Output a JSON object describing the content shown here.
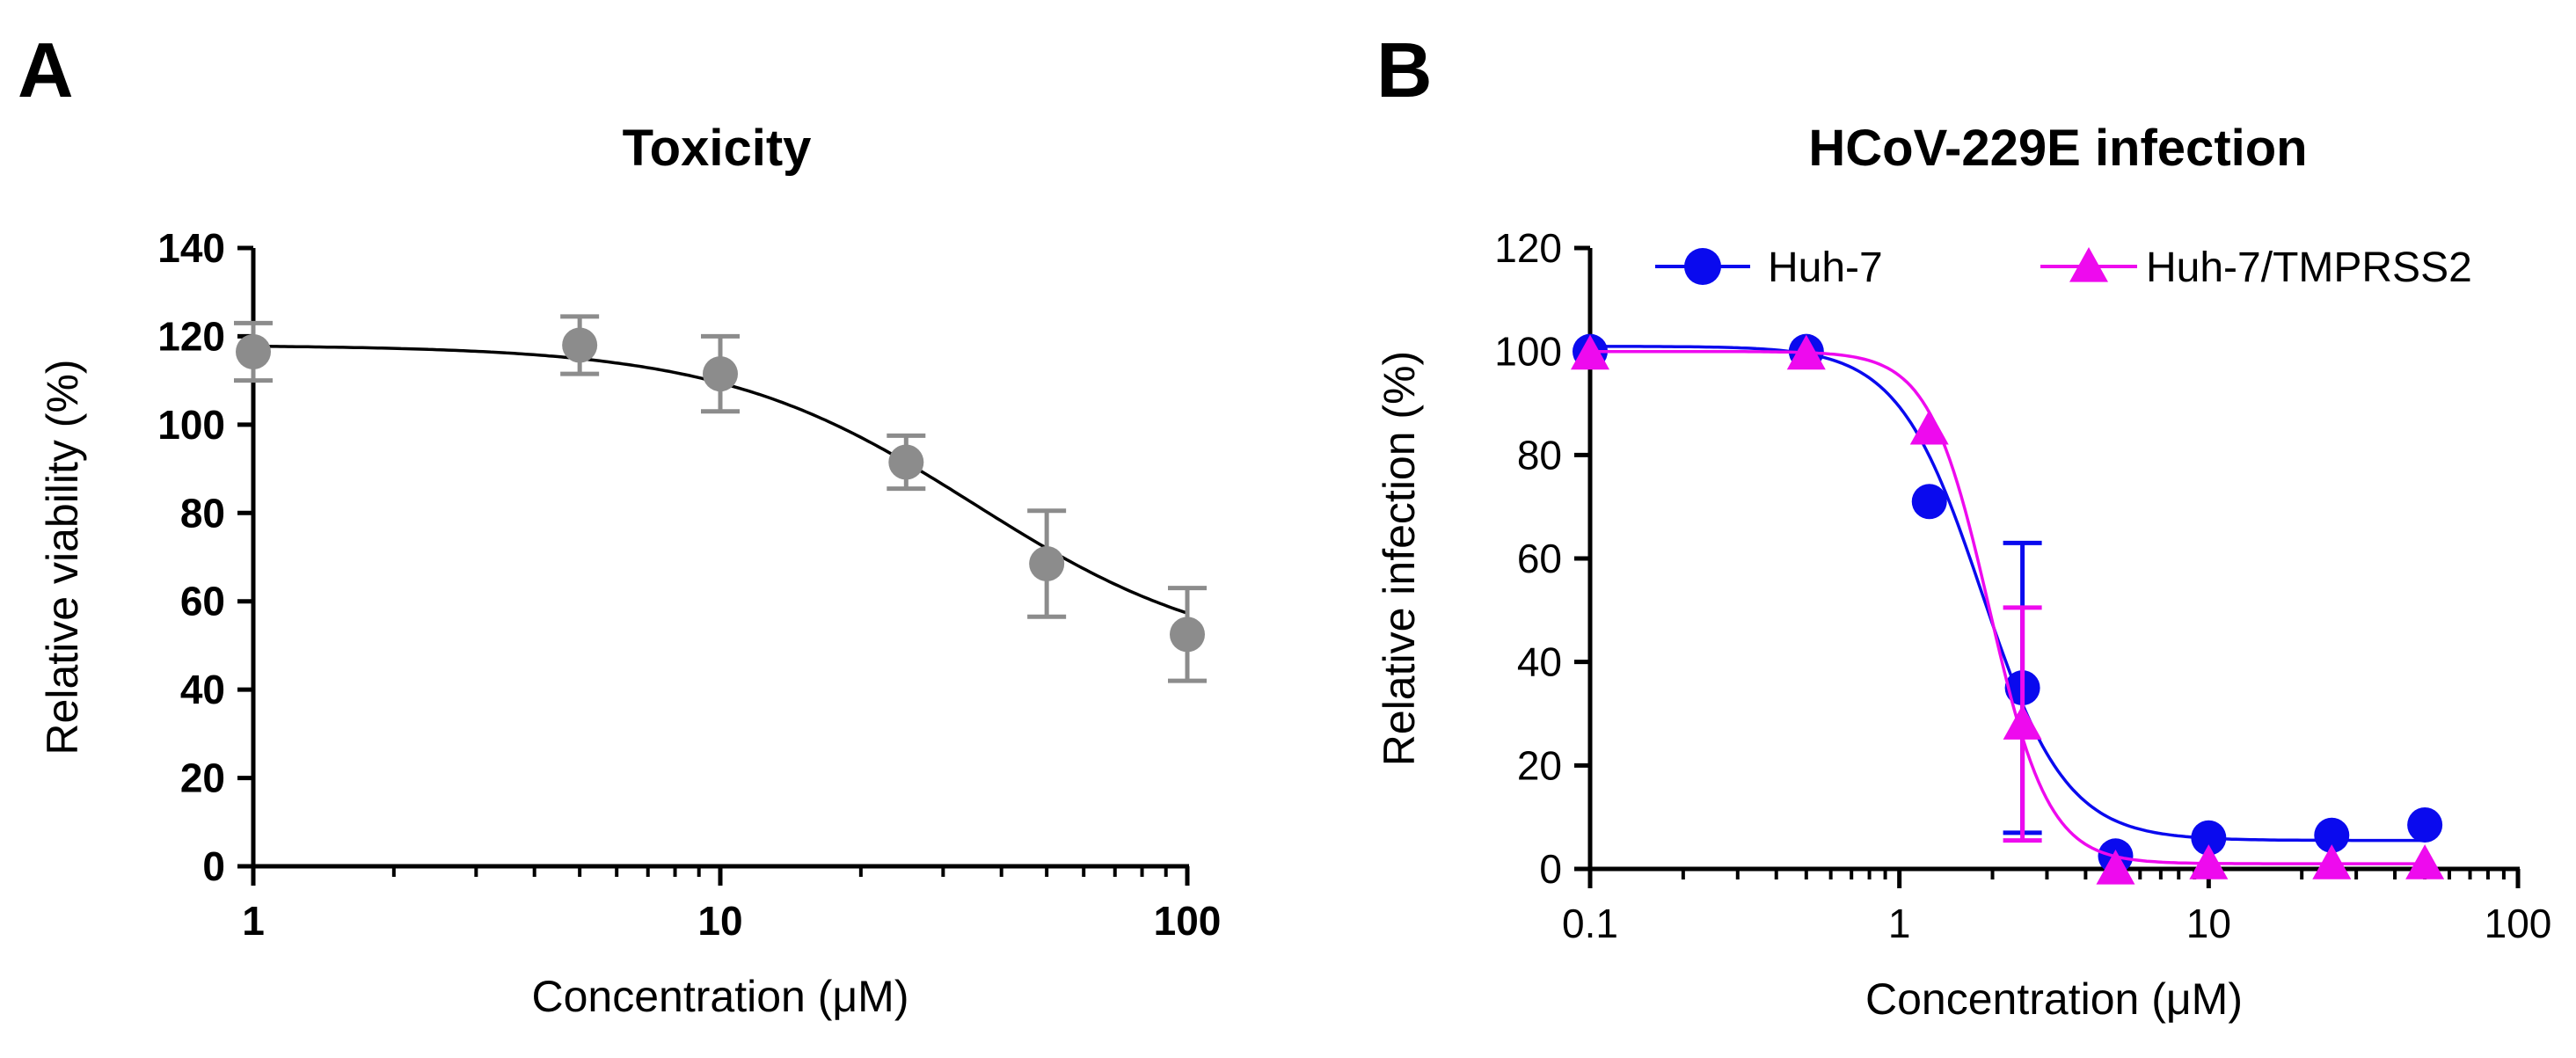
{
  "chart_data": [
    {
      "panel": "A",
      "type": "scatter",
      "title": "Toxicity",
      "xlabel": "Concentration (μM)",
      "ylabel": "Relative viability (%)",
      "xscale": "log",
      "xlim": [
        1,
        100
      ],
      "ylim": [
        0,
        140
      ],
      "xticks": [
        "1",
        "10",
        "100"
      ],
      "yticks": [
        "0",
        "20",
        "40",
        "60",
        "80",
        "100",
        "120",
        "140"
      ],
      "grid": false,
      "legend": null,
      "colors": {
        "points": "#8c8c8c",
        "curve": "#000000"
      },
      "series": [
        {
          "x": [
            1,
            5,
            10,
            25,
            50,
            100
          ],
          "y": [
            116.5,
            118,
            111.5,
            91.5,
            68.5,
            52.5
          ],
          "error": [
            6.5,
            6.5,
            8.5,
            6,
            12,
            10.5
          ],
          "fit": {
            "top": 118,
            "bottom": 46,
            "ec50": 35,
            "hill": 1.6
          }
        }
      ]
    },
    {
      "panel": "B",
      "type": "scatter",
      "title": "HCoV-229E infection",
      "xlabel": "Concentration (μM)",
      "ylabel": "Relative infection (%)",
      "xscale": "log",
      "xlim": [
        0.1,
        100
      ],
      "ylim": [
        0,
        120
      ],
      "xticks": [
        "0.1",
        "1",
        "10",
        "100"
      ],
      "yticks": [
        "0",
        "20",
        "40",
        "60",
        "80",
        "100",
        "120"
      ],
      "grid": false,
      "legend_position": "top",
      "series": [
        {
          "name": "Huh-7",
          "marker": "circle",
          "color": "#0a0aee",
          "x": [
            0.1,
            0.5,
            1.25,
            2.5,
            5,
            10,
            25,
            50
          ],
          "y": [
            100,
            100,
            71,
            35,
            2.5,
            6,
            6.5,
            8.5
          ],
          "error": [
            0,
            0,
            0,
            28,
            0,
            0,
            0,
            0
          ],
          "fit": {
            "top": 101,
            "bottom": 5.5,
            "ec50": 1.85,
            "hill": 3.2
          }
        },
        {
          "name": "Huh-7/TMPRSS2",
          "marker": "triangle",
          "color": "#ee0aee",
          "x": [
            0.1,
            0.5,
            1.25,
            2.5,
            5,
            10,
            25,
            50
          ],
          "y": [
            99.5,
            99.5,
            85,
            28,
            0,
            1,
            1,
            1
          ],
          "error": [
            0,
            0,
            0,
            22.5,
            0,
            0,
            0,
            0
          ],
          "fit": {
            "top": 100,
            "bottom": 1,
            "ec50": 1.95,
            "hill": 4.5
          }
        }
      ]
    }
  ]
}
